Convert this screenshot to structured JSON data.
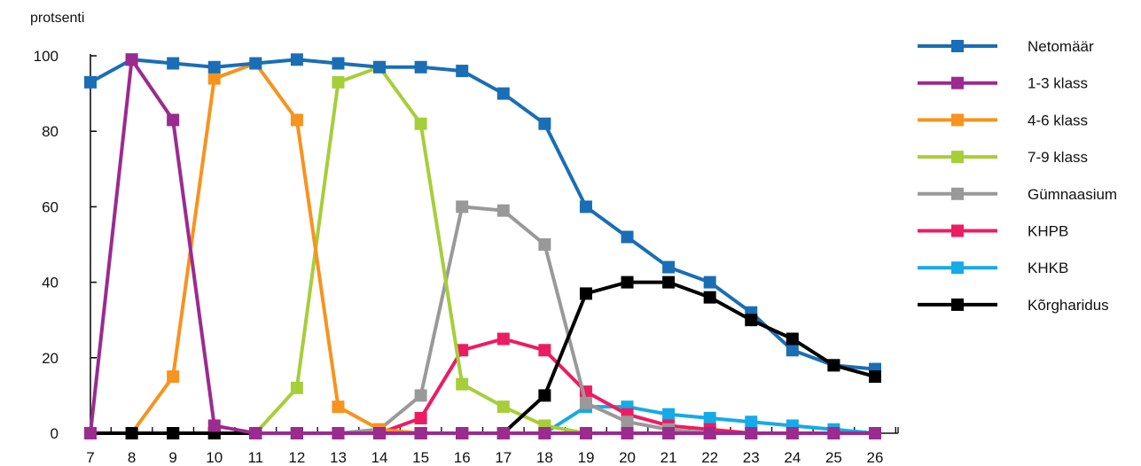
{
  "chart_data": {
    "type": "line",
    "ylabel": "protsenti",
    "xlabel": "",
    "ylim": [
      0,
      100
    ],
    "yticks": [
      0,
      20,
      40,
      60,
      80,
      100
    ],
    "x": [
      7,
      8,
      9,
      10,
      11,
      12,
      13,
      14,
      15,
      16,
      17,
      18,
      19,
      20,
      21,
      22,
      23,
      24,
      25,
      26
    ],
    "legend_position": "right",
    "series": [
      {
        "name": "Netomäär",
        "color": "#1a6eb5",
        "values": [
          93,
          99,
          98,
          97,
          98,
          99,
          98,
          97,
          97,
          96,
          90,
          82,
          60,
          52,
          44,
          40,
          32,
          22,
          18,
          17
        ]
      },
      {
        "name": "1-3 klass",
        "color": "#9b2b8f",
        "values": [
          0,
          99,
          83,
          2,
          0,
          0,
          0,
          0,
          0,
          0,
          0,
          0,
          0,
          0,
          0,
          0,
          0,
          0,
          0,
          0
        ]
      },
      {
        "name": "4-6 klass",
        "color": "#f7931e",
        "values": [
          0,
          0,
          15,
          94,
          98,
          83,
          7,
          1,
          0,
          0,
          0,
          0,
          0,
          0,
          0,
          0,
          0,
          0,
          0,
          0
        ]
      },
      {
        "name": "7-9 klass",
        "color": "#a6ce39",
        "values": [
          0,
          0,
          0,
          0,
          0,
          12,
          93,
          97,
          82,
          13,
          7,
          2,
          0,
          0,
          0,
          0,
          0,
          0,
          0,
          0
        ]
      },
      {
        "name": "Gümnaasium",
        "color": "#999999",
        "values": [
          0,
          0,
          0,
          0,
          0,
          0,
          0,
          1,
          10,
          60,
          59,
          50,
          8,
          3,
          1,
          0,
          0,
          0,
          0,
          0
        ]
      },
      {
        "name": "KHPB",
        "color": "#ec1c63",
        "values": [
          0,
          0,
          0,
          0,
          0,
          0,
          0,
          0,
          4,
          22,
          25,
          22,
          11,
          5,
          2,
          1,
          0,
          0,
          0,
          0
        ]
      },
      {
        "name": "KHKB",
        "color": "#16aae7",
        "values": [
          0,
          0,
          0,
          0,
          0,
          0,
          0,
          0,
          0,
          0,
          0,
          0,
          7,
          7,
          5,
          4,
          3,
          2,
          1,
          0
        ]
      },
      {
        "name": "Kõrgharidus",
        "color": "#000000",
        "values": [
          0,
          0,
          0,
          0,
          0,
          0,
          0,
          0,
          0,
          0,
          0,
          10,
          37,
          40,
          40,
          36,
          30,
          25,
          18,
          15
        ]
      }
    ],
    "overlay_values": {
      "1-3 klass_tail": [
        0,
        0,
        0,
        0,
        0,
        0,
        0,
        0,
        0,
        0,
        0,
        0,
        0,
        0,
        0,
        0,
        0,
        0,
        0,
        0
      ]
    }
  }
}
